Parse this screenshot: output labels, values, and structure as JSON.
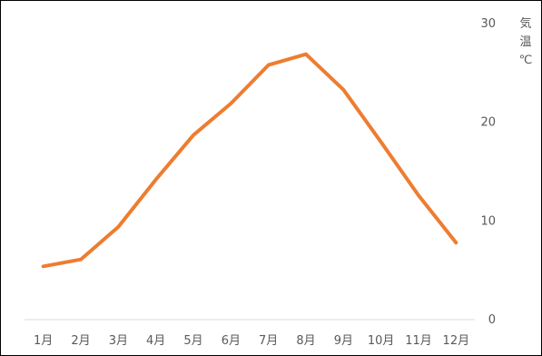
{
  "chart_data": {
    "type": "line",
    "categories": [
      "1月",
      "2月",
      "3月",
      "4月",
      "5月",
      "6月",
      "7月",
      "8月",
      "9月",
      "10月",
      "11月",
      "12月"
    ],
    "series": [
      {
        "values": [
          5.4,
          6.1,
          9.4,
          14.2,
          18.7,
          21.9,
          25.8,
          26.9,
          23.3,
          18.0,
          12.6,
          7.8
        ]
      }
    ],
    "ylabel": "気温℃",
    "ylim": [
      0,
      30
    ],
    "yticks": [
      0,
      10,
      20,
      30
    ],
    "y_axis_side": "right",
    "grid": false,
    "legend": "none",
    "colors": {
      "line": "#ED7D31",
      "axis": "#D9D9D9",
      "text": "#595959"
    }
  }
}
